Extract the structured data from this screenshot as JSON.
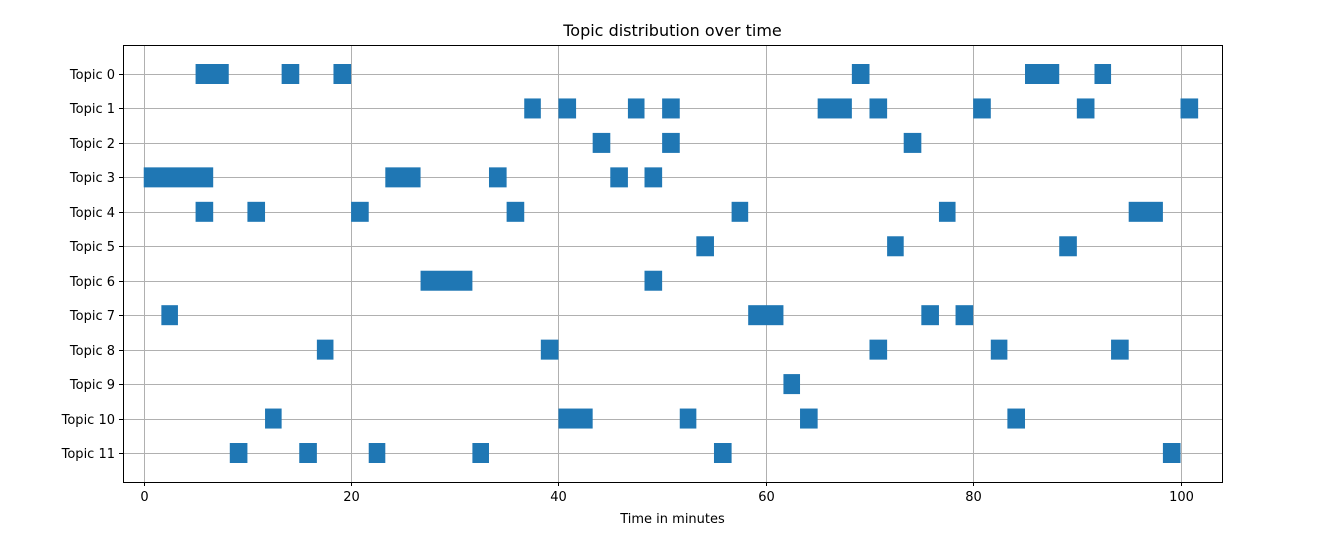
{
  "chart_data": {
    "type": "gantt",
    "title": "Topic distribution over time",
    "xlabel": "Time in minutes",
    "ylabel": "",
    "xlim": [
      -2,
      104
    ],
    "x_ticks": [
      0,
      20,
      40,
      60,
      80,
      100
    ],
    "grid": true,
    "bar_color": "#1f77b4",
    "categories": [
      "Topic 0",
      "Topic 1",
      "Topic 2",
      "Topic 3",
      "Topic 4",
      "Topic 5",
      "Topic 6",
      "Topic 7",
      "Topic 8",
      "Topic 9",
      "Topic 10",
      "Topic 11"
    ],
    "series": [
      {
        "category": "Topic 0",
        "segments": [
          [
            5.0,
            8.2
          ],
          [
            13.3,
            15.0
          ],
          [
            18.3,
            20.0
          ],
          [
            68.3,
            70.0
          ],
          [
            85.0,
            88.3
          ],
          [
            91.7,
            93.3
          ]
        ]
      },
      {
        "category": "Topic 1",
        "segments": [
          [
            36.7,
            38.3
          ],
          [
            40.0,
            41.7
          ],
          [
            46.7,
            48.3
          ],
          [
            50.0,
            51.7
          ],
          [
            65.0,
            68.3
          ],
          [
            70.0,
            71.7
          ],
          [
            80.0,
            81.7
          ],
          [
            90.0,
            91.7
          ],
          [
            100.0,
            101.7
          ]
        ]
      },
      {
        "category": "Topic 2",
        "segments": [
          [
            43.3,
            45.0
          ],
          [
            50.0,
            51.7
          ],
          [
            73.3,
            75.0
          ]
        ]
      },
      {
        "category": "Topic 3",
        "segments": [
          [
            0.0,
            6.7
          ],
          [
            23.3,
            26.7
          ],
          [
            33.3,
            35.0
          ],
          [
            45.0,
            46.7
          ],
          [
            48.3,
            50.0
          ]
        ]
      },
      {
        "category": "Topic 4",
        "segments": [
          [
            5.0,
            6.7
          ],
          [
            10.0,
            11.7
          ],
          [
            20.0,
            21.7
          ],
          [
            35.0,
            36.7
          ],
          [
            56.7,
            58.3
          ],
          [
            76.7,
            78.3
          ],
          [
            95.0,
            98.3
          ]
        ]
      },
      {
        "category": "Topic 5",
        "segments": [
          [
            53.3,
            55.0
          ],
          [
            71.7,
            73.3
          ],
          [
            88.3,
            90.0
          ]
        ]
      },
      {
        "category": "Topic 6",
        "segments": [
          [
            26.7,
            31.7
          ],
          [
            48.3,
            50.0
          ]
        ]
      },
      {
        "category": "Topic 7",
        "segments": [
          [
            1.7,
            3.3
          ],
          [
            58.3,
            61.7
          ],
          [
            75.0,
            76.7
          ],
          [
            78.3,
            80.0
          ]
        ]
      },
      {
        "category": "Topic 8",
        "segments": [
          [
            16.7,
            18.3
          ],
          [
            38.3,
            40.0
          ],
          [
            70.0,
            71.7
          ],
          [
            81.7,
            83.3
          ],
          [
            93.3,
            95.0
          ]
        ]
      },
      {
        "category": "Topic 9",
        "segments": [
          [
            61.7,
            63.3
          ]
        ]
      },
      {
        "category": "Topic 10",
        "segments": [
          [
            11.7,
            13.3
          ],
          [
            40.0,
            43.3
          ],
          [
            51.7,
            53.3
          ],
          [
            63.3,
            65.0
          ],
          [
            83.3,
            85.0
          ]
        ]
      },
      {
        "category": "Topic 11",
        "segments": [
          [
            8.3,
            10.0
          ],
          [
            15.0,
            16.7
          ],
          [
            21.7,
            23.3
          ],
          [
            31.7,
            33.3
          ],
          [
            55.0,
            56.7
          ],
          [
            98.3,
            100.0
          ]
        ]
      }
    ]
  }
}
